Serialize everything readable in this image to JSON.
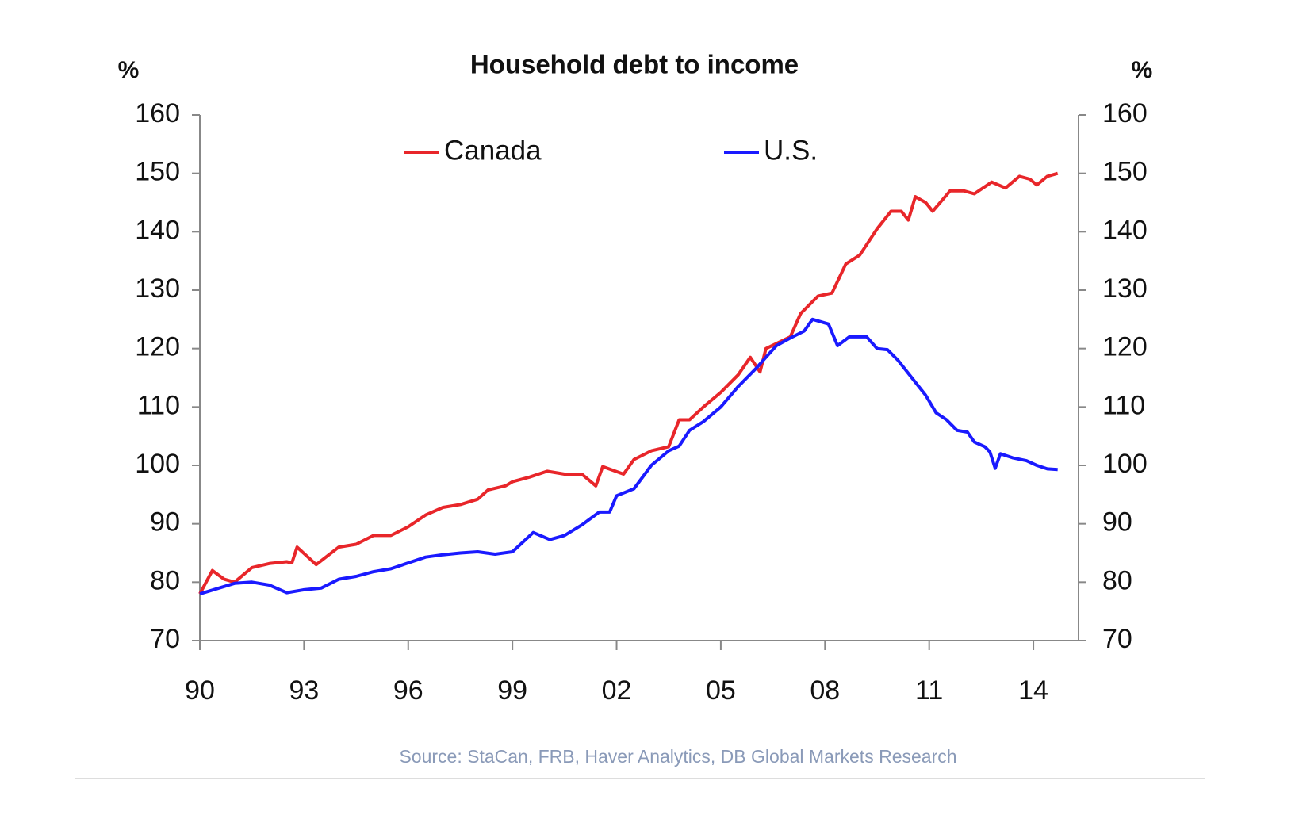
{
  "chart_data": {
    "type": "line",
    "title": "Household debt to income",
    "y_label": "%",
    "y2_label": "%",
    "source": "Source: StaCan, FRB, Haver Analytics, DB Global Markets Research",
    "xlim": [
      1990,
      2015.3
    ],
    "xticks": [
      {
        "value": 1990,
        "label": "90"
      },
      {
        "value": 1993,
        "label": "93"
      },
      {
        "value": 1996,
        "label": "96"
      },
      {
        "value": 1999,
        "label": "99"
      },
      {
        "value": 2002,
        "label": "02"
      },
      {
        "value": 2005,
        "label": "05"
      },
      {
        "value": 2008,
        "label": "08"
      },
      {
        "value": 2011,
        "label": "11"
      },
      {
        "value": 2014,
        "label": "14"
      }
    ],
    "ylim": [
      70,
      160
    ],
    "yticks": [
      70,
      80,
      90,
      100,
      110,
      120,
      130,
      140,
      150,
      160
    ],
    "y2lim": [
      70,
      160
    ],
    "y2ticks": [
      70,
      80,
      90,
      100,
      110,
      120,
      130,
      140,
      150,
      160
    ],
    "legend": "top",
    "series": [
      {
        "name": "Canada",
        "color": "#e8262a",
        "x": [
          1990,
          1990.36,
          1990.7,
          1991,
          1991.5,
          1992,
          1992.5,
          1992.65,
          1992.8,
          1993.35,
          1994,
          1994.5,
          1995,
          1995.5,
          1996,
          1996.5,
          1997,
          1997.5,
          1998,
          1998.3,
          1998.8,
          1999,
          1999.5,
          2000,
          2000.5,
          2001,
          2001.4,
          2001.6,
          2002.2,
          2002.5,
          2003,
          2003.5,
          2003.8,
          2004.1,
          2004.5,
          2005,
          2005.5,
          2005.85,
          2006.13,
          2006.3,
          2007,
          2007.3,
          2007.8,
          2008.2,
          2008.6,
          2009,
          2009.5,
          2009.9,
          2010.2,
          2010.4,
          2010.6,
          2010.9,
          2011.1,
          2011.6,
          2012,
          2012.3,
          2012.8,
          2013.2,
          2013.6,
          2013.9,
          2014.1,
          2014.4,
          2014.7
        ],
        "values": [
          78,
          82,
          80.5,
          80,
          82.5,
          83.2,
          83.5,
          83.3,
          86,
          83,
          86,
          86.5,
          88,
          88,
          89.5,
          91.5,
          92.8,
          93.3,
          94.2,
          95.8,
          96.5,
          97.2,
          98,
          99,
          98.5,
          98.5,
          96.5,
          99.8,
          98.5,
          101,
          102.5,
          103.2,
          107.8,
          107.8,
          110,
          112.5,
          115.5,
          118.5,
          116,
          120,
          122,
          126,
          129,
          129.5,
          134.5,
          136,
          140.5,
          143.5,
          143.5,
          142,
          146,
          145,
          143.5,
          147,
          147,
          146.5,
          148.5,
          147.5,
          149.5,
          149,
          148,
          149.5,
          150
        ]
      },
      {
        "name": "U.S.",
        "color": "#1a1aff",
        "x": [
          1990,
          1991,
          1991.5,
          1992,
          1992.5,
          1993,
          1993.5,
          1994,
          1994.5,
          1995,
          1995.5,
          1996,
          1996.5,
          1997,
          1997.5,
          1998,
          1998.5,
          1999,
          1999.6,
          2000.08,
          2000.5,
          2001,
          2001.5,
          2001.8,
          2002,
          2002.5,
          2003,
          2003.5,
          2003.8,
          2004.1,
          2004.5,
          2005,
          2005.5,
          2006,
          2006.3,
          2006.6,
          2007,
          2007.4,
          2007.64,
          2008.1,
          2008.36,
          2008.7,
          2009.2,
          2009.5,
          2009.8,
          2010.1,
          2010.5,
          2010.9,
          2011.2,
          2011.5,
          2011.8,
          2012.1,
          2012.3,
          2012.6,
          2012.75,
          2012.9,
          2013.05,
          2013.4,
          2013.8,
          2014.1,
          2014.4,
          2014.7
        ],
        "values": [
          78,
          79.8,
          80,
          79.5,
          78.2,
          78.7,
          79,
          80.5,
          81,
          81.8,
          82.3,
          83.3,
          84.3,
          84.7,
          85,
          85.2,
          84.8,
          85.2,
          88.5,
          87.3,
          88,
          89.8,
          92,
          92,
          94.8,
          96,
          100,
          102.5,
          103.3,
          106,
          107.5,
          110,
          113.5,
          116.5,
          118.5,
          120.5,
          121.8,
          123,
          125,
          124.2,
          120.5,
          122,
          122,
          120,
          119.8,
          118,
          115,
          112,
          109,
          107.8,
          106,
          105.7,
          104,
          103.2,
          102.3,
          99.5,
          102,
          101.3,
          100.8,
          100,
          99.4,
          99.3
        ]
      }
    ]
  }
}
